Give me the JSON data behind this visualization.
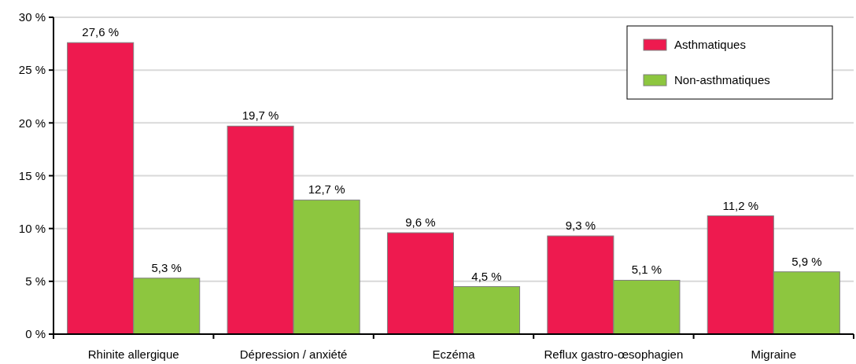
{
  "chart_data": {
    "type": "bar",
    "categories": [
      "Rhinite allergique",
      "Dépression / anxiété",
      "Eczéma",
      "Reflux gastro-œsophagien",
      "Migraine"
    ],
    "series": [
      {
        "name": "Asthmatiques",
        "color": "#ee1a4f",
        "values": [
          27.6,
          19.7,
          9.6,
          9.3,
          11.2
        ],
        "value_labels": [
          "27,6 %",
          "19,7 %",
          "9,6 %",
          "9,3 %",
          "11,2 %"
        ]
      },
      {
        "name": "Non-asthmatiques",
        "color": "#8dc63f",
        "values": [
          5.3,
          12.7,
          4.5,
          5.1,
          5.9
        ],
        "value_labels": [
          "5,3 %",
          "12,7 %",
          "4,5 %",
          "5,1 %",
          "5,9 %"
        ]
      }
    ],
    "ylim": [
      0,
      30
    ],
    "yticks": [
      {
        "value": 0,
        "label": "0 %"
      },
      {
        "value": 5,
        "label": "5 %"
      },
      {
        "value": 10,
        "label": "10 %"
      },
      {
        "value": 15,
        "label": "15 %"
      },
      {
        "value": 20,
        "label": "20 %"
      },
      {
        "value": 25,
        "label": "25 %"
      },
      {
        "value": 30,
        "label": "30 %"
      }
    ],
    "grid": "y",
    "legend": "top right"
  }
}
